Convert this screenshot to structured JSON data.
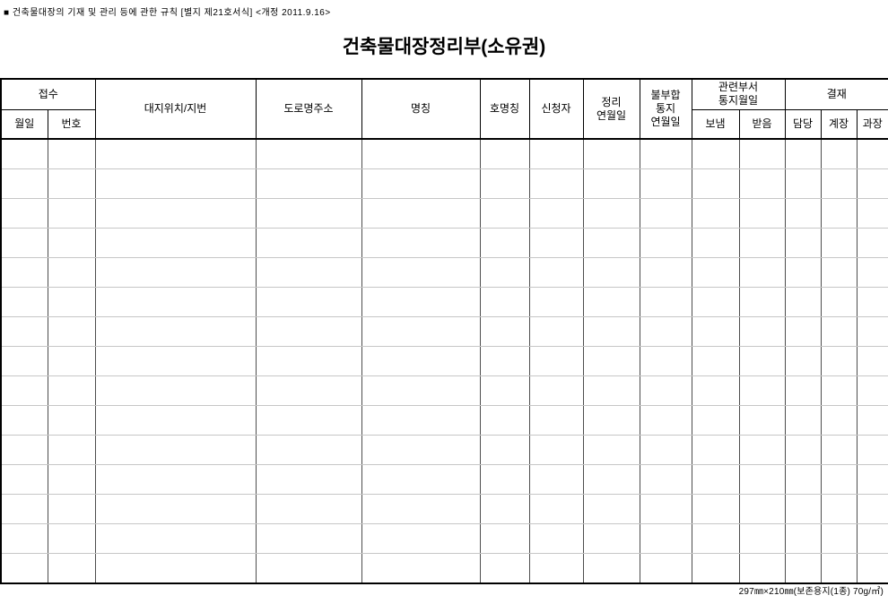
{
  "document": {
    "top_note": "■ 건축물대장의 기재 및 관리 등에 관한 규칙 [별지 제21호서식] <개정 2011.9.16>",
    "title": "건축물대장정리부(소유권)",
    "footer_note": "297㎜×210㎜(보존용지(1종) 70g/㎡)"
  },
  "table": {
    "row_count": 15,
    "column_count": 14,
    "headers": {
      "receipt_group": "접수",
      "receipt_date": "월일",
      "receipt_number": "번호",
      "site_location": "대지위치/지번",
      "road_address": "도로명주소",
      "building_name": "명칭",
      "unit_name": "호명칭",
      "applicant": "신청자",
      "arrangement_date": "정리\n연월일",
      "mismatch_notice_date": "불부합\n통지\n연월일",
      "related_dept_notice_group": "관련부서\n통지월일",
      "sent": "보냄",
      "received": "받음",
      "approval_group": "결재",
      "staff": "담당",
      "section_chief": "계장",
      "division_chief": "과장"
    },
    "cells": []
  },
  "colors": {
    "outer_border": "#000000",
    "header_line": "#000000",
    "body_vertical_line": "#4d4d4d",
    "body_horizontal_line": "#c6c6c6",
    "background": "#ffffff",
    "text": "#000000"
  }
}
